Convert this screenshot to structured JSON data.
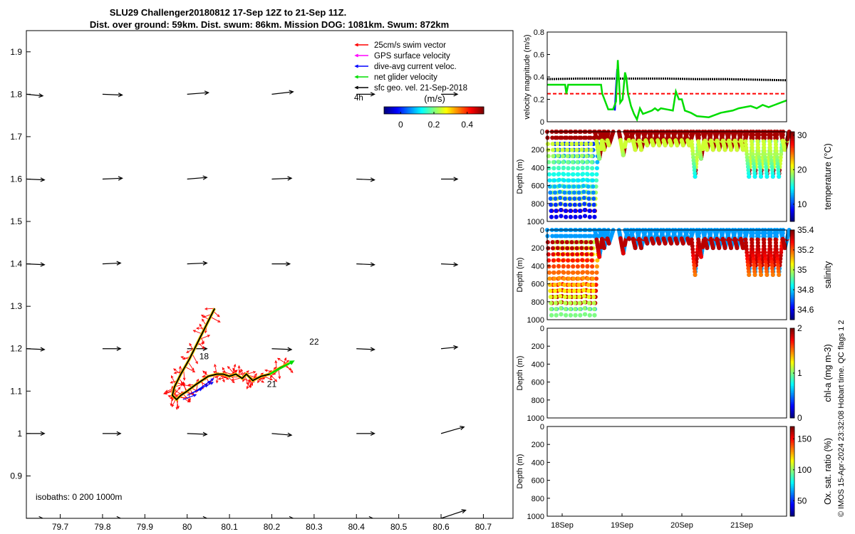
{
  "figure": {
    "title_line1": "SLU29 Challenger20180812 17-Sep 12Z to 21-Sep 11Z.",
    "title_line2": "Dist. over ground: 59km. Dist. swum: 86km. Mission DOG: 1081km. Swum: 872km",
    "footer": "© IMOS 15-Apr-2024 23:32:08 Hobart time. QC flags 1  2",
    "colors": {
      "swim_vector": "#ff0000",
      "gps_surface": "#ff00ff",
      "dive_avg": "#0000ff",
      "net_glider": "#00dd00",
      "sfc_geo": "#000000"
    }
  },
  "chart_data": [
    {
      "id": "map",
      "type": "scatter",
      "title": "",
      "xlim": [
        79.62,
        80.77
      ],
      "ylim": [
        0.8,
        1.95
      ],
      "xticks": [
        79.7,
        79.8,
        79.9,
        80,
        80.1,
        80.2,
        80.3,
        80.4,
        80.5,
        80.6,
        80.7
      ],
      "xtick_labels": [
        "79.7",
        "79.8",
        "79.9",
        "80",
        "80.1",
        "80.2",
        "80.3",
        "80.4",
        "80.5",
        "80.6",
        "80.7"
      ],
      "yticks": [
        0.9,
        1.0,
        1.1,
        1.2,
        1.3,
        1.4,
        1.5,
        1.6,
        1.7,
        1.8,
        1.9
      ],
      "ytick_labels": [
        "0.9",
        "1",
        "1.1",
        "1.2",
        "1.3",
        "1.4",
        "1.5",
        "1.6",
        "1.7",
        "1.8",
        "1.9"
      ],
      "legend": [
        {
          "label": "25cm/s swim vector",
          "color": "#ff0000"
        },
        {
          "label": "GPS surface velocity",
          "color": "#ff00ff"
        },
        {
          "label": "dive-avg current veloc.",
          "color": "#0000ff"
        },
        {
          "label": "net glider velocity",
          "color": "#00dd00"
        },
        {
          "label": "sfc geo. vel. 21-Sep-2018",
          "color": "#000000"
        }
      ],
      "legend_scale_label": "4h",
      "colorbar": {
        "label": "(m/s)",
        "ticks": [
          0,
          0.2,
          0.4
        ],
        "tick_labels": [
          "0",
          "0.2",
          "0.4"
        ],
        "range": [
          -0.1,
          0.5
        ]
      },
      "annotation": "isobaths: 0   200  1000m",
      "day_labels": [
        {
          "text": "18",
          "lon": 80.04,
          "lat": 1.175
        },
        {
          "text": "21",
          "lon": 80.2,
          "lat": 1.11
        },
        {
          "text": "22",
          "lon": 80.3,
          "lat": 1.21
        }
      ],
      "geo_vectors": {
        "lons": [
          79.62,
          79.8,
          80,
          80.2,
          80.4,
          80.6
        ],
        "lats": [
          0.8,
          1.0,
          1.2,
          1.4,
          1.6,
          1.8
        ],
        "u": [
          [
            0.2,
            0.22,
            0.24,
            0.26,
            0.2,
            0.3
          ],
          [
            0.22,
            0.22,
            0.24,
            0.24,
            0.22,
            0.28
          ],
          [
            0.22,
            0.22,
            0.24,
            0.24,
            0.22,
            0.2
          ],
          [
            0.22,
            0.22,
            0.24,
            0.22,
            0.22,
            0.2
          ],
          [
            0.22,
            0.24,
            0.24,
            0.24,
            0.22,
            0.2
          ],
          [
            0.2,
            0.24,
            0.26,
            0.26,
            0.22,
            0.2
          ]
        ],
        "v": [
          [
            0.0,
            0.0,
            0.0,
            0.0,
            0.0,
            0.1
          ],
          [
            0.0,
            0.0,
            -0.01,
            -0.02,
            0.0,
            0.08
          ],
          [
            -0.01,
            0.0,
            0.0,
            -0.01,
            -0.01,
            0.02
          ],
          [
            -0.01,
            0.01,
            0.01,
            0.0,
            -0.01,
            -0.01
          ],
          [
            -0.01,
            0.01,
            0.02,
            0.01,
            -0.01,
            0.0
          ],
          [
            -0.02,
            -0.01,
            0.02,
            0.03,
            0.0,
            0.0
          ]
        ]
      },
      "track": {
        "lon": [
          80.065,
          80.045,
          80.025,
          80.005,
          79.985,
          79.97,
          79.965,
          79.975,
          79.985,
          80.0,
          80.02,
          80.05,
          80.07,
          80.085,
          80.1,
          80.115,
          80.13,
          80.14,
          80.155,
          80.175,
          80.195,
          80.22,
          80.24
        ],
        "lat": [
          1.295,
          1.255,
          1.215,
          1.175,
          1.14,
          1.11,
          1.09,
          1.08,
          1.09,
          1.1,
          1.115,
          1.135,
          1.14,
          1.14,
          1.135,
          1.14,
          1.13,
          1.14,
          1.125,
          1.135,
          1.14,
          1.155,
          1.165
        ]
      },
      "dive_avg_current": [
        {
          "lon": 79.99,
          "lat": 1.08,
          "u": 0.16,
          "v": 0.06
        },
        {
          "lon": 80.0,
          "lat": 1.09,
          "u": 0.18,
          "v": 0.08
        },
        {
          "lon": 80.01,
          "lat": 1.095,
          "u": 0.2,
          "v": 0.1
        },
        {
          "lon": 80.02,
          "lat": 1.1,
          "u": 0.18,
          "v": 0.12
        },
        {
          "lon": 80.03,
          "lat": 1.105,
          "u": 0.16,
          "v": 0.08
        },
        {
          "lon": 80.035,
          "lat": 1.11,
          "u": 0.14,
          "v": 0.1
        }
      ]
    },
    {
      "id": "velocity",
      "type": "line",
      "ylabel": "velocity magnitude (m/s)",
      "xlim": [
        0,
        4
      ],
      "ylim": [
        0,
        0.8
      ],
      "yticks": [
        0,
        0.2,
        0.4,
        0.6,
        0.8
      ],
      "ytick_labels": [
        "0",
        "0.2",
        "0.4",
        "0.6",
        "0.8"
      ],
      "series": [
        {
          "name": "sfc geo. vel.",
          "color": "#000000",
          "style": "dots",
          "x": [
            0,
            0.5,
            1,
            1.5,
            2,
            2.5,
            3,
            3.5,
            4
          ],
          "y": [
            0.38,
            0.385,
            0.385,
            0.385,
            0.385,
            0.38,
            0.38,
            0.375,
            0.37
          ]
        },
        {
          "name": "swim vector",
          "color": "#ff0000",
          "style": "dashed",
          "x": [
            0,
            4
          ],
          "y": [
            0.25,
            0.25
          ]
        },
        {
          "name": "dive-avg current",
          "color": "#0000ff",
          "style": "solid",
          "x": [
            1.13,
            1.15,
            1.17,
            1.19
          ],
          "y": [
            0.1,
            0.3,
            0.47,
            0.44
          ]
        },
        {
          "name": "net glider velocity",
          "color": "#00dd00",
          "style": "solid",
          "x": [
            0,
            0.3,
            0.32,
            0.35,
            0.9,
            0.92,
            1.02,
            1.05,
            1.1,
            1.15,
            1.18,
            1.22,
            1.26,
            1.3,
            1.32,
            1.35,
            1.4,
            1.45,
            1.5,
            1.55,
            1.6,
            1.65,
            1.75,
            1.8,
            1.85,
            1.9,
            2.0,
            2.1,
            2.15,
            2.2,
            2.25,
            2.3,
            2.4,
            2.5,
            2.7,
            2.9,
            3.1,
            3.2,
            3.4,
            3.5,
            3.6,
            3.7,
            3.8,
            3.9,
            4.0
          ],
          "y": [
            0.33,
            0.33,
            0.25,
            0.33,
            0.33,
            0.25,
            0.11,
            0.11,
            0.11,
            0.18,
            0.55,
            0.17,
            0.2,
            0.44,
            0.4,
            0.25,
            0.14,
            0.07,
            0.02,
            0.12,
            0.07,
            0.08,
            0.1,
            0.12,
            0.1,
            0.12,
            0.11,
            0.1,
            0.27,
            0.2,
            0.2,
            0.1,
            0.08,
            0.05,
            0.04,
            0.08,
            0.1,
            0.12,
            0.14,
            0.12,
            0.15,
            0.13,
            0.15,
            0.17,
            0.19
          ]
        }
      ]
    },
    {
      "id": "temperature",
      "type": "heatmap",
      "ylabel": "Depth (m)",
      "colorbar_label": "temperature (°C)",
      "ylim": [
        0,
        1000
      ],
      "yticks": [
        0,
        200,
        400,
        600,
        800,
        1000
      ],
      "ytick_labels": [
        "0",
        "200",
        "400",
        "600",
        "800",
        "1000"
      ],
      "crange": [
        5,
        31
      ],
      "cticks": [
        10,
        20,
        30
      ],
      "ctick_labels": [
        "10",
        "20",
        "30"
      ],
      "surface_value": 30,
      "thermocline_value": 20,
      "deep_value": 8
    },
    {
      "id": "salinity",
      "type": "heatmap",
      "ylabel": "Depth (m)",
      "colorbar_label": "salinity",
      "ylim": [
        0,
        1000
      ],
      "yticks": [
        0,
        200,
        400,
        600,
        800,
        1000
      ],
      "ytick_labels": [
        "0",
        "200",
        "400",
        "600",
        "800",
        "1000"
      ],
      "crange": [
        34.5,
        35.4
      ],
      "cticks": [
        34.6,
        34.8,
        35,
        35.2,
        35.4
      ],
      "ctick_labels": [
        "34.6",
        "34.8",
        "35",
        "35.2",
        "35.4"
      ],
      "surface_value": 34.75,
      "thermocline_value": 35.35,
      "deep_value": 34.95
    },
    {
      "id": "chla",
      "type": "heatmap",
      "ylabel": "Depth (m)",
      "colorbar_label": "chl-a (mg m-3)",
      "ylim": [
        0,
        1000
      ],
      "yticks": [
        0,
        200,
        400,
        600,
        800,
        1000
      ],
      "ytick_labels": [
        "0",
        "200",
        "400",
        "600",
        "800",
        "1000"
      ],
      "crange": [
        0,
        2
      ],
      "cticks": [
        0,
        1,
        2
      ],
      "ctick_labels": [
        "0",
        "1",
        "2"
      ]
    },
    {
      "id": "oxygen",
      "type": "heatmap",
      "ylabel": "Depth (m)",
      "colorbar_label": "Ox. sat. ratio (%)",
      "ylim": [
        0,
        1000
      ],
      "yticks": [
        0,
        200,
        400,
        600,
        800,
        1000
      ],
      "ytick_labels": [
        "0",
        "200",
        "400",
        "600",
        "800",
        "1000"
      ],
      "crange": [
        25,
        170
      ],
      "cticks": [
        50,
        100,
        150
      ],
      "ctick_labels": [
        "50",
        "100",
        "150"
      ],
      "xticks": [
        0.25,
        1.25,
        2.25,
        3.25
      ],
      "xtick_labels": [
        "18Sep",
        "19Sep",
        "20Sep",
        "21Sep"
      ]
    }
  ],
  "dives": {
    "x": [
      0.0,
      0.08,
      0.16,
      0.24,
      0.32,
      0.4,
      0.48,
      0.56,
      0.64,
      0.72,
      0.8,
      0.88,
      0.96,
      1.2,
      1.3,
      1.4,
      1.5,
      1.6,
      1.7,
      1.8,
      1.9,
      2.0,
      2.1,
      2.2,
      2.3,
      2.4,
      2.5,
      2.6,
      2.7,
      2.8,
      2.9,
      3.0,
      3.1,
      3.2,
      3.3,
      3.4,
      3.5,
      3.6,
      3.7,
      3.8,
      3.9
    ],
    "max_depth": [
      950,
      950,
      940,
      950,
      950,
      950,
      950,
      940,
      950,
      950,
      300,
      200,
      150,
      260,
      100,
      200,
      200,
      150,
      150,
      150,
      150,
      150,
      150,
      150,
      150,
      500,
      300,
      200,
      200,
      200,
      200,
      200,
      200,
      200,
      500,
      500,
      500,
      500,
      500,
      500,
      200
    ],
    "gap": [
      1.0,
      1.15
    ]
  }
}
